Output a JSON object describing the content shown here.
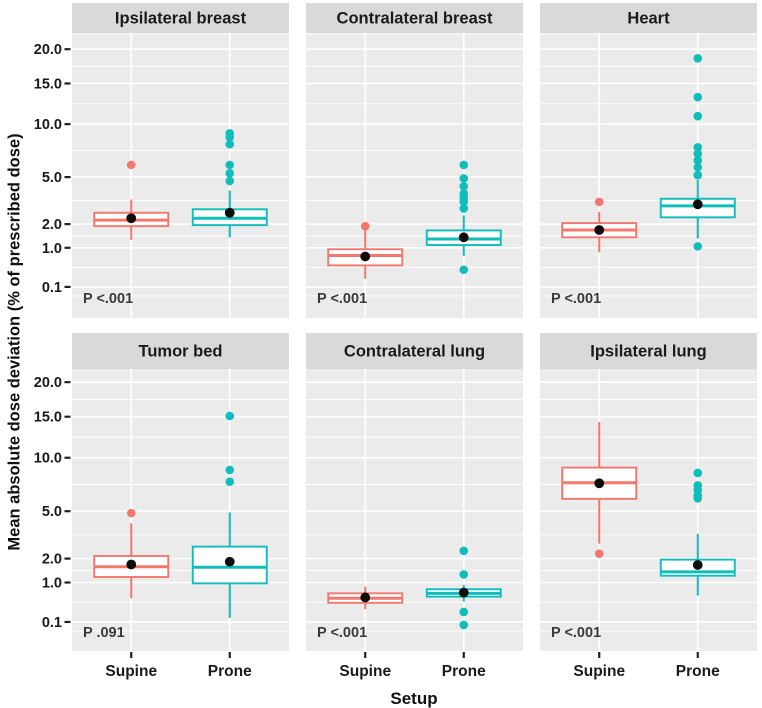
{
  "chart_data": {
    "type": "boxplot",
    "facet_layout": {
      "rows": 2,
      "cols": 3,
      "shared_x": true,
      "shared_y": true
    },
    "title": "",
    "xlabel": "Setup",
    "ylabel": "Mean absolute dose deviation (% of prescribed dose)",
    "categories": [
      "Supine",
      "Prone"
    ],
    "y_scale": "sqrt",
    "y_ticks": [
      20.0,
      15.0,
      10.0,
      5.0,
      2.0,
      1.0,
      0.1
    ],
    "y_tick_labels": [
      "20.0",
      "15.0",
      "10.0",
      "5.0",
      "2.0",
      "1.0",
      "0.1"
    ],
    "ylim": [
      0.02,
      22.5
    ],
    "grid": true,
    "colors": {
      "supine": "#F1776F",
      "prone": "#10BDBA",
      "mean_dot": "#0d0d0d",
      "panel_bg": "#EBEBEB",
      "strip_bg": "#D9D9D9",
      "grid_line": "#FFFFFF",
      "text": "#1a1a1a",
      "p_text": "#3a3a3a"
    },
    "panels": [
      {
        "title": "Ipsilateral breast",
        "p_label": "P <.001",
        "boxes": [
          {
            "group": "Supine",
            "whisker_low": 1.3,
            "q1": 1.9,
            "median": 2.2,
            "q3": 2.6,
            "whisker_high": 3.4,
            "mean": 2.3,
            "outliers": [
              6.0
            ]
          },
          {
            "group": "Prone",
            "whisker_low": 1.4,
            "q1": 1.95,
            "median": 2.3,
            "q3": 2.8,
            "whisker_high": 4.0,
            "mean": 2.6,
            "outliers": [
              9.0,
              8.6,
              7.9,
              6.0,
              5.3,
              4.7
            ]
          }
        ]
      },
      {
        "title": "Contralateral breast",
        "p_label": "P <.001",
        "boxes": [
          {
            "group": "Supine",
            "whisker_low": 0.21,
            "q1": 0.48,
            "median": 0.75,
            "q3": 0.95,
            "whisker_high": 1.75,
            "mean": 0.72,
            "outliers": [
              1.9
            ]
          },
          {
            "group": "Prone",
            "whisker_low": 0.74,
            "q1": 1.1,
            "median": 1.33,
            "q3": 1.7,
            "whisker_high": 2.45,
            "mean": 1.4,
            "outliers": [
              6.0,
              4.9,
              4.3,
              3.8,
              3.5,
              3.25,
              2.85,
              0.38
            ]
          }
        ]
      },
      {
        "title": "Heart",
        "p_label": "P <.001",
        "boxes": [
          {
            "group": "Supine",
            "whisker_low": 0.85,
            "q1": 1.4,
            "median": 1.72,
            "q3": 2.05,
            "whisker_high": 2.65,
            "mean": 1.72,
            "outliers": [
              3.25
            ]
          },
          {
            "group": "Prone",
            "whisker_low": 1.35,
            "q1": 2.35,
            "median": 3.0,
            "q3": 3.45,
            "whisker_high": 4.78,
            "mean": 3.1,
            "outliers": [
              18.6,
              13.2,
              10.9,
              7.6,
              7.0,
              6.4,
              5.8,
              5.15,
              1.05
            ]
          }
        ]
      },
      {
        "title": "Tumor bed",
        "p_label": "P .091",
        "boxes": [
          {
            "group": "Supine",
            "whisker_low": 0.53,
            "q1": 1.2,
            "median": 1.62,
            "q3": 2.13,
            "whisker_high": 4.1,
            "mean": 1.72,
            "outliers": [
              4.85
            ]
          },
          {
            "group": "Prone",
            "whisker_low": 0.15,
            "q1": 0.97,
            "median": 1.6,
            "q3": 2.63,
            "whisker_high": 4.9,
            "mean": 1.85,
            "outliers": [
              15.1,
              8.7,
              7.55
            ]
          }
        ]
      },
      {
        "title": "Contralateral lung",
        "p_label": "P <.001",
        "boxes": [
          {
            "group": "Supine",
            "whisker_low": 0.29,
            "q1": 0.42,
            "median": 0.53,
            "q3": 0.66,
            "whisker_high": 0.86,
            "mean": 0.55,
            "outliers": []
          },
          {
            "group": "Prone",
            "whisker_low": 0.45,
            "q1": 0.57,
            "median": 0.66,
            "q3": 0.78,
            "whisker_high": 0.92,
            "mean": 0.68,
            "outliers": [
              2.4,
              1.3,
              0.24,
              0.07
            ]
          }
        ]
      },
      {
        "title": "Ipsilateral lung",
        "p_label": "P <.001",
        "boxes": [
          {
            "group": "Supine",
            "whisker_low": 2.8,
            "q1": 6.0,
            "median": 7.45,
            "q3": 8.95,
            "whisker_high": 14.3,
            "mean": 7.4,
            "outliers": [
              2.25
            ]
          },
          {
            "group": "Prone",
            "whisker_low": 0.6,
            "q1": 1.25,
            "median": 1.4,
            "q3": 1.95,
            "whisker_high": 3.4,
            "mean": 1.7,
            "outliers": [
              8.4,
              7.2,
              6.8,
              6.3,
              6.05
            ]
          }
        ]
      }
    ]
  }
}
